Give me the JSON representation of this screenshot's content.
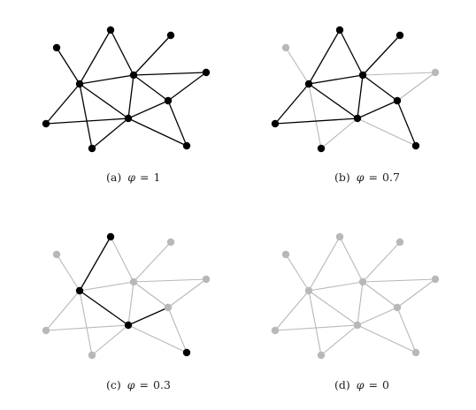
{
  "panels": [
    {
      "id": "a",
      "label": "(a)",
      "phi": "1",
      "black_nodes": [
        "n1",
        "n2",
        "n3",
        "n4",
        "n5",
        "n6",
        "n7",
        "n8",
        "n9",
        "n10"
      ],
      "black_edges": [
        "n1-n4",
        "n2-n4",
        "n2-n5",
        "n3-n5",
        "n4-n5",
        "n5-n6",
        "n4-n8",
        "n4-n9",
        "n4-n7",
        "n5-n7",
        "n7-n8",
        "n7-n10",
        "n9-n7",
        "n6-n7",
        "n5-n9_skip",
        "n7-n10b",
        "n6-n10"
      ]
    },
    {
      "id": "b",
      "label": "(b)",
      "phi": "0.7",
      "black_nodes": [
        "n2",
        "n3",
        "n4",
        "n5",
        "n7",
        "n8",
        "n9",
        "n10"
      ],
      "black_edges": [
        "n2-n4",
        "n2-n5",
        "n3-n5",
        "n4-n5",
        "n4-n8",
        "n4-n7",
        "n5-n7",
        "n7-n8",
        "n5-n9_skip",
        "n7-n10b",
        "n6-n10",
        "n9-n10"
      ]
    },
    {
      "id": "c",
      "label": "(c)",
      "phi": "0.3",
      "black_nodes": [
        "n2",
        "n4",
        "n7",
        "n10"
      ],
      "black_edges": [
        "n2-n4",
        "n4-n7",
        "n7-n10b"
      ]
    },
    {
      "id": "d",
      "label": "(d)",
      "phi": "0",
      "black_nodes": [],
      "black_edges": []
    }
  ],
  "phi_symbol": "φ",
  "equals": "=",
  "colors": {
    "black": "#000000",
    "gray": "#b8b8b8",
    "text": "#222222"
  }
}
